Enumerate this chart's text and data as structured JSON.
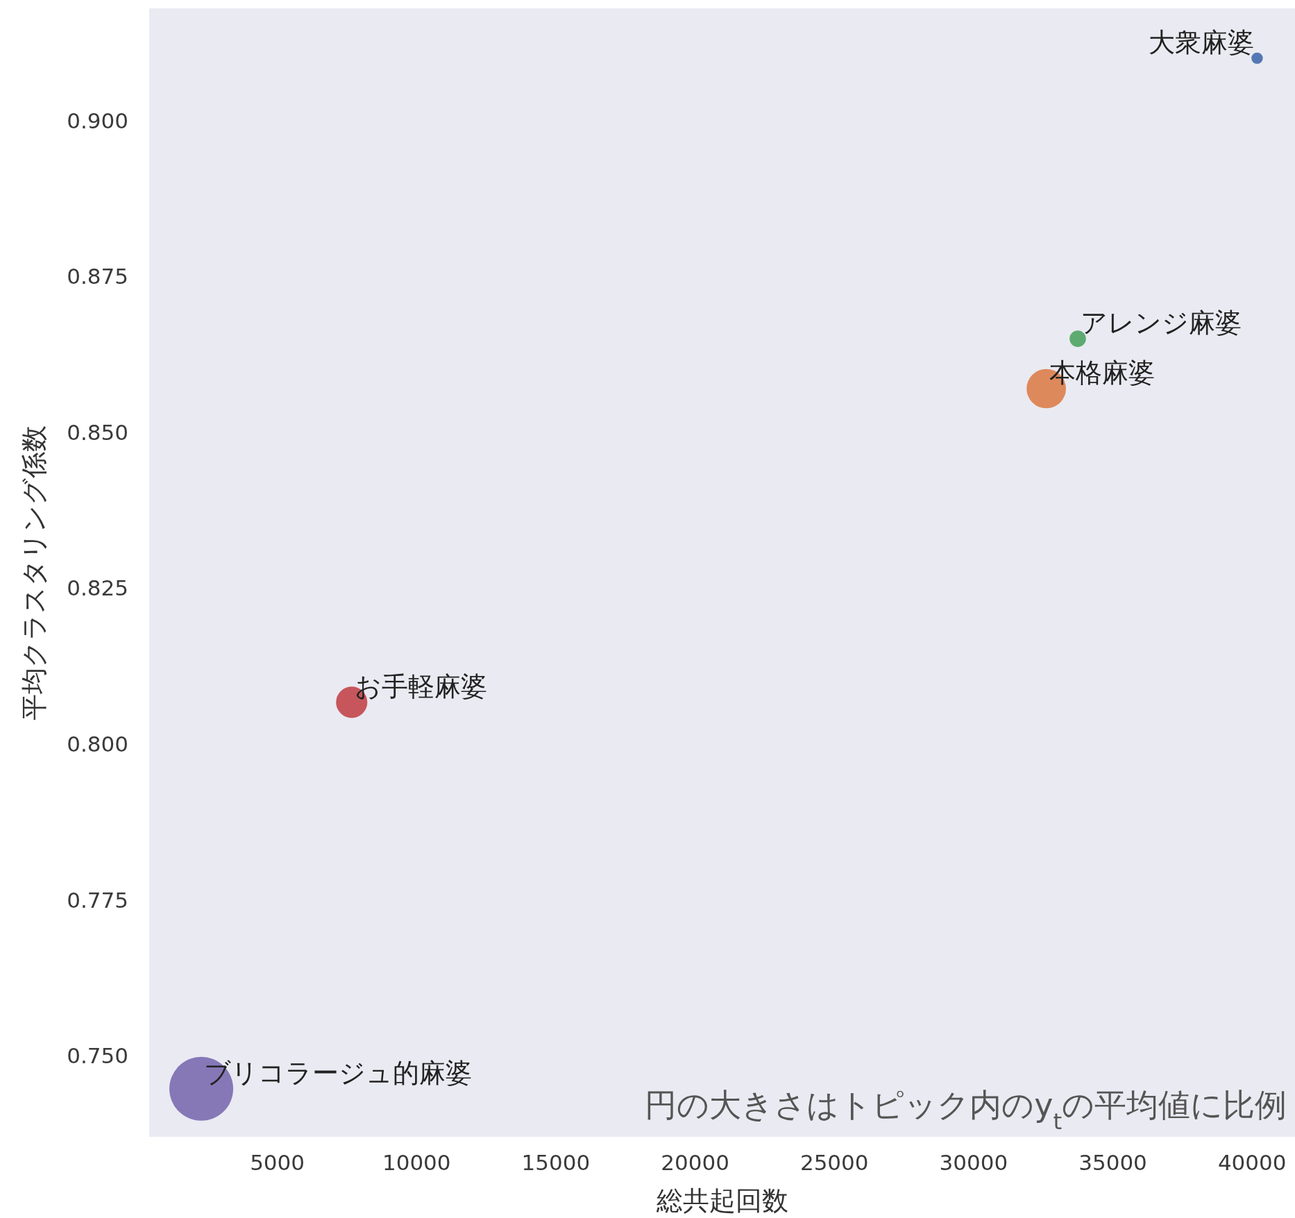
{
  "chart_data": {
    "type": "bubble",
    "xlabel": "総共起回数",
    "ylabel": "平均クラスタリング係数",
    "annotations": [
      "円の大きさはトピック内のy$_{t}$の平均値に比例"
    ],
    "xlim": [
      400,
      41540
    ],
    "ylim": [
      0.737,
      0.918
    ],
    "xticks": [
      5000,
      10000,
      15000,
      20000,
      25000,
      30000,
      35000,
      40000
    ],
    "yticks": [
      {
        "value": 0.75,
        "label": "0.750"
      },
      0.775,
      {
        "value": 0.8,
        "label": "0.800"
      },
      0.825,
      {
        "value": 0.85,
        "label": "0.850"
      },
      0.875,
      {
        "value": 0.9,
        "label": "0.900"
      }
    ],
    "series": [
      {
        "name": "大衆麻婆",
        "color": "#4c72b0",
        "x": [
          40180
        ],
        "values": [
          0.91
        ],
        "sizes": [
          0.032
        ]
      },
      {
        "name": "本格麻婆",
        "color": "#dd8452",
        "x": [
          32610
        ],
        "values": [
          0.857
        ],
        "sizes": [
          0.38
        ]
      },
      {
        "name": "アレンジ麻婆",
        "color": "#55a868",
        "x": [
          33740
        ],
        "values": [
          0.865
        ],
        "sizes": [
          0.066
        ]
      },
      {
        "name": "お手軽麻婆",
        "color": "#c44e52",
        "x": [
          7670
        ],
        "values": [
          0.8067
        ],
        "sizes": [
          0.24
        ]
      },
      {
        "name": "ブリコラージュ的麻婆",
        "color": "#8172b3",
        "x": [
          2270
        ],
        "values": [
          0.7447
        ],
        "sizes": [
          1
        ]
      }
    ]
  }
}
